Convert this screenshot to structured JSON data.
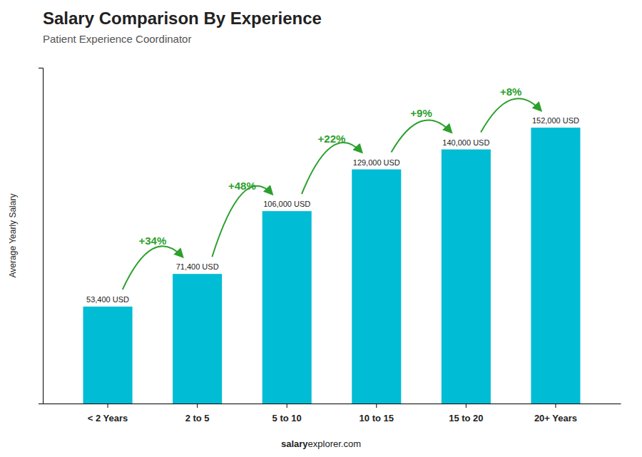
{
  "chart_data": {
    "type": "bar",
    "title": "Salary Comparison By Experience",
    "subtitle": "Patient Experience Coordinator",
    "categories": [
      "< 2 Years",
      "2 to 5",
      "5 to 10",
      "10 to 15",
      "15 to 20",
      "20+ Years"
    ],
    "values": [
      53400,
      71400,
      106000,
      129000,
      140000,
      152000
    ],
    "value_labels": [
      "53,400 USD",
      "71,400 USD",
      "106,000 USD",
      "129,000 USD",
      "140,000 USD",
      "152,000 USD"
    ],
    "data_labels": true,
    "color": "#00bcd4",
    "annotations": [
      "+34%",
      "+48%",
      "+22%",
      "+9%",
      "+8%"
    ],
    "ylabel": "Average Yearly Salary",
    "footer": [
      "salary",
      "explorer.com"
    ],
    "ylim": [
      0,
      185000
    ],
    "yticks": [],
    "grid": false,
    "tick_labels": "x"
  }
}
